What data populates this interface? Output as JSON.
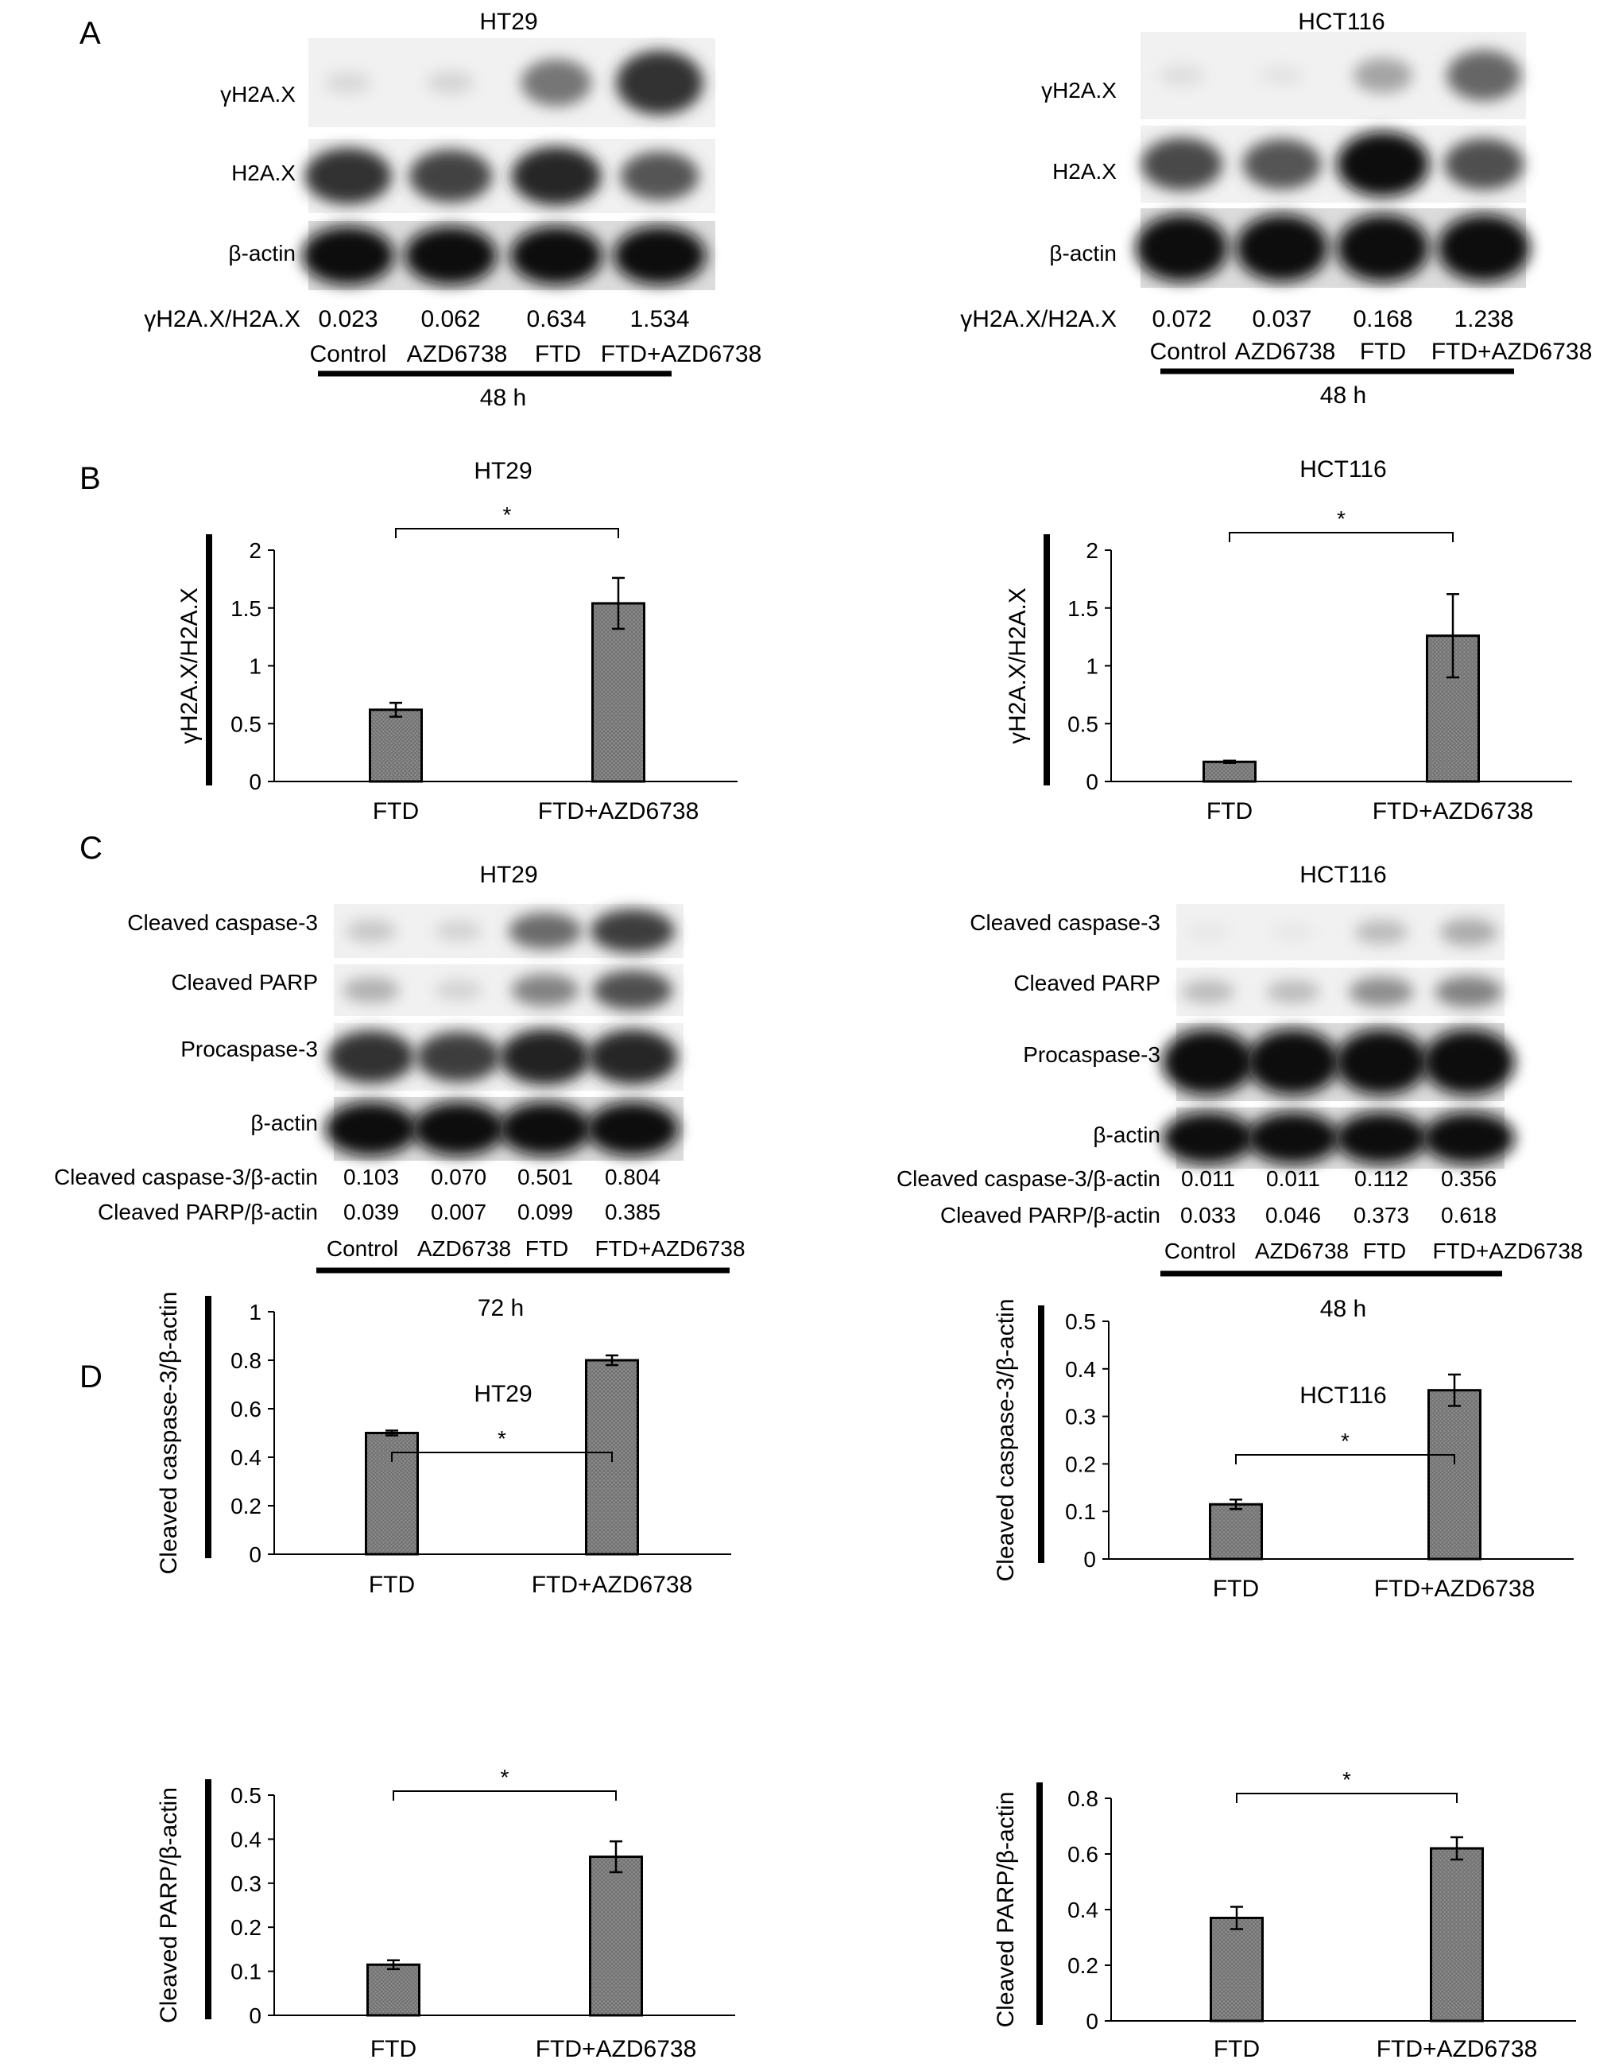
{
  "panels": {
    "A": {
      "letter": "A",
      "ht29": {
        "cell_line": "HT29",
        "proteins": [
          "γH2A.X",
          "H2A.X",
          "β-actin"
        ],
        "ratio_label": "γH2A.X/H2A.X",
        "ratio_values": [
          "0.023",
          "0.062",
          "0.634",
          "1.534"
        ],
        "lanes": [
          "Control",
          "AZD6738",
          "FTD",
          "FTD+AZD6738"
        ],
        "time": "48 h"
      },
      "hct116": {
        "cell_line": "HCT116",
        "proteins": [
          "γH2A.X",
          "H2A.X",
          "β-actin"
        ],
        "ratio_label": "γH2A.X/H2A.X",
        "ratio_values": [
          "0.072",
          "0.037",
          "0.168",
          "1.238"
        ],
        "lanes": [
          "Control",
          "AZD6738",
          "FTD",
          "FTD+AZD6738"
        ],
        "time": "48 h"
      }
    },
    "B": {
      "letter": "B"
    },
    "C": {
      "letter": "C",
      "ht29": {
        "cell_line": "HT29",
        "proteins": [
          "Cleaved caspase-3",
          "Cleaved PARP",
          "Procaspase-3",
          "β-actin"
        ],
        "ratio_label_1": "Cleaved caspase-3/β-actin",
        "ratio_values_1": [
          "0.103",
          "0.070",
          "0.501",
          "0.804"
        ],
        "ratio_label_2": "Cleaved PARP/β-actin",
        "ratio_values_2": [
          "0.039",
          "0.007",
          "0.099",
          "0.385"
        ],
        "lanes": [
          "Control",
          "AZD6738",
          "FTD",
          "FTD+AZD6738"
        ],
        "time": "72 h"
      },
      "hct116": {
        "cell_line": "HCT116",
        "proteins": [
          "Cleaved caspase-3",
          "Cleaved PARP",
          "Procaspase-3",
          "β-actin"
        ],
        "ratio_label_1": "Cleaved caspase-3/β-actin",
        "ratio_values_1": [
          "0.011",
          "0.011",
          "0.112",
          "0.356"
        ],
        "ratio_label_2": "Cleaved PARP/β-actin",
        "ratio_values_2": [
          "0.033",
          "0.046",
          "0.373",
          "0.618"
        ],
        "lanes": [
          "Control",
          "AZD6738",
          "FTD",
          "FTD+AZD6738"
        ],
        "time": "48 h"
      }
    },
    "D": {
      "letter": "D"
    }
  },
  "blot_intensities": {
    "A_ht29": [
      [
        0.12,
        0.14,
        0.55,
        0.85
      ],
      [
        0.85,
        0.78,
        0.9,
        0.7
      ],
      [
        1,
        1,
        1,
        1
      ]
    ],
    "A_hct116": [
      [
        0.1,
        0.08,
        0.35,
        0.62
      ],
      [
        0.75,
        0.7,
        1,
        0.72
      ],
      [
        1,
        1,
        1,
        1
      ]
    ],
    "C_ht29": [
      [
        0.2,
        0.15,
        0.6,
        0.8
      ],
      [
        0.3,
        0.15,
        0.5,
        0.72
      ],
      [
        0.85,
        0.8,
        0.92,
        0.9
      ],
      [
        1,
        1,
        1,
        1
      ]
    ],
    "C_hct116": [
      [
        0.06,
        0.06,
        0.25,
        0.32
      ],
      [
        0.25,
        0.25,
        0.45,
        0.5
      ],
      [
        1,
        1,
        1,
        1
      ],
      [
        1,
        1,
        1,
        1
      ]
    ]
  },
  "chart_data": [
    {
      "id": "B-HT29",
      "type": "bar",
      "title": "HT29",
      "ylabel": "γH2A.X/H2A.X",
      "categories": [
        "FTD",
        "FTD+AZD6738"
      ],
      "values": [
        0.62,
        1.54
      ],
      "errors": [
        0.06,
        0.22
      ],
      "ylim": [
        0,
        2
      ],
      "yticks": [
        0,
        0.5,
        1,
        1.5,
        2
      ],
      "significance": "*"
    },
    {
      "id": "B-HCT116",
      "type": "bar",
      "title": "HCT116",
      "ylabel": "γH2A.X/H2A.X",
      "categories": [
        "FTD",
        "FTD+AZD6738"
      ],
      "values": [
        0.17,
        1.26
      ],
      "errors": [
        0.01,
        0.36
      ],
      "ylim": [
        0,
        2
      ],
      "yticks": [
        0,
        0.5,
        1,
        1.5,
        2
      ],
      "significance": "*"
    },
    {
      "id": "D-HT29-casp",
      "type": "bar",
      "title": "HT29",
      "ylabel": "Cleaved caspase-3/β-actin",
      "categories": [
        "FTD",
        "FTD+AZD6738"
      ],
      "values": [
        0.5,
        0.8
      ],
      "errors": [
        0.01,
        0.02
      ],
      "ylim": [
        0,
        1
      ],
      "yticks": [
        0,
        0.2,
        0.4,
        0.6,
        0.8,
        1
      ],
      "significance": "*"
    },
    {
      "id": "D-HCT116-casp",
      "type": "bar",
      "title": "HCT116",
      "ylabel": "Cleaved caspase-3/β-actin",
      "categories": [
        "FTD",
        "FTD+AZD6738"
      ],
      "values": [
        0.115,
        0.355
      ],
      "errors": [
        0.01,
        0.033
      ],
      "ylim": [
        0,
        0.5
      ],
      "yticks": [
        0,
        0.1,
        0.2,
        0.3,
        0.4,
        0.5
      ],
      "significance": "*"
    },
    {
      "id": "D-HT29-parp",
      "type": "bar",
      "title": "",
      "ylabel": "Cleaved PARP/β-actin",
      "categories": [
        "FTD",
        "FTD+AZD6738"
      ],
      "values": [
        0.115,
        0.36
      ],
      "errors": [
        0.01,
        0.035
      ],
      "ylim": [
        0,
        0.5
      ],
      "yticks": [
        0,
        0.1,
        0.2,
        0.3,
        0.4,
        0.5
      ],
      "significance": "*"
    },
    {
      "id": "D-HCT116-parp",
      "type": "bar",
      "title": "",
      "ylabel": "Cleaved PARP/β-actin",
      "categories": [
        "FTD",
        "FTD+AZD6738"
      ],
      "values": [
        0.37,
        0.62
      ],
      "errors": [
        0.04,
        0.04
      ],
      "ylim": [
        0,
        0.8
      ],
      "yticks": [
        0,
        0.2,
        0.4,
        0.6,
        0.8
      ],
      "significance": "*"
    }
  ]
}
